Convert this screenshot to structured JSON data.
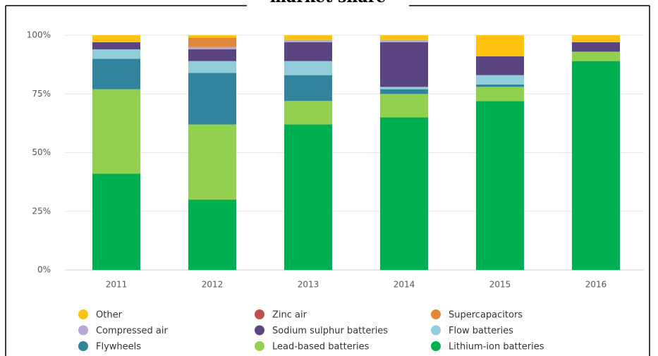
{
  "chart_data": {
    "type": "stacked_bar",
    "title": "market share",
    "categories": [
      "2011",
      "2012",
      "2013",
      "2014",
      "2015",
      "2016"
    ],
    "series": [
      {
        "name": "Other",
        "color": "#ffc20e",
        "values": [
          3,
          1,
          2,
          2,
          9,
          3
        ]
      },
      {
        "name": "Zinc air",
        "color": "#c0504d",
        "values": [
          0,
          0,
          0,
          0,
          0,
          0
        ]
      },
      {
        "name": "Supercapacitors",
        "color": "#e0873a",
        "values": [
          0,
          4,
          0,
          0,
          0,
          0
        ]
      },
      {
        "name": "Compressed air",
        "color": "#b7a6d8",
        "values": [
          0,
          1,
          1,
          1,
          0,
          0
        ]
      },
      {
        "name": "Sodium sulphur batteries",
        "color": "#5b4580",
        "values": [
          3,
          5,
          8,
          19,
          8,
          4
        ]
      },
      {
        "name": "Flow batteries",
        "color": "#92cddc",
        "values": [
          4,
          5,
          6,
          1,
          4,
          0
        ]
      },
      {
        "name": "Flywheels",
        "color": "#31849b",
        "values": [
          13,
          22,
          11,
          2,
          1,
          0
        ]
      },
      {
        "name": "Lead-based batteries",
        "color": "#92d050",
        "values": [
          36,
          32,
          10,
          10,
          6,
          4
        ]
      },
      {
        "name": "Lithium-ion batteries",
        "color": "#00b050",
        "values": [
          41,
          30,
          62,
          65,
          72,
          89
        ]
      }
    ],
    "ylim": [
      0,
      100
    ],
    "yticks": [
      {
        "value": 0,
        "label": "0%"
      },
      {
        "value": 25,
        "label": "25%"
      },
      {
        "value": 50,
        "label": "50%"
      },
      {
        "value": 75,
        "label": "75%"
      },
      {
        "value": 100,
        "label": "100%"
      }
    ],
    "grid": true,
    "legend": "bottom"
  }
}
